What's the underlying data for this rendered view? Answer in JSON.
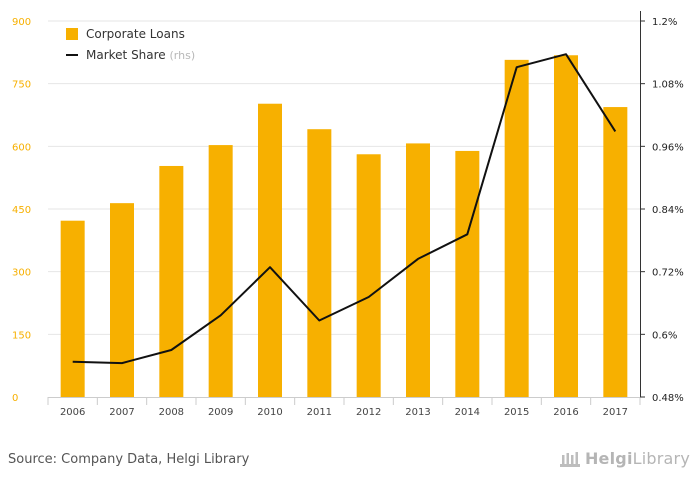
{
  "chart_data": {
    "type": "bar",
    "categories": [
      "2006",
      "2007",
      "2008",
      "2009",
      "2010",
      "2011",
      "2012",
      "2013",
      "2014",
      "2015",
      "2016",
      "2017"
    ],
    "series": [
      {
        "name": "Corporate Loans",
        "type": "bar",
        "axis": "left",
        "color": "#f7b000",
        "values": [
          422,
          464,
          553,
          603,
          702,
          641,
          581,
          607,
          589,
          807,
          818,
          694
        ]
      },
      {
        "name": "Market Share",
        "legend_suffix": "(rhs)",
        "type": "line",
        "axis": "right",
        "color": "#111111",
        "values": [
          0.5475,
          0.545,
          0.57,
          0.6365,
          0.7285,
          0.6265,
          0.6715,
          0.7445,
          0.7915,
          1.1115,
          1.1365,
          0.9885
        ]
      }
    ],
    "y_left": {
      "min": 0,
      "max": 900,
      "ticks": [
        0,
        150,
        300,
        450,
        600,
        750,
        900
      ],
      "tick_labels": [
        "0",
        "150",
        "300",
        "450",
        "600",
        "750",
        "900"
      ],
      "label_color": "#f7b000"
    },
    "y_right": {
      "min": 0.48,
      "max": 1.2,
      "ticks": [
        0.48,
        0.6,
        0.72,
        0.84,
        0.96,
        1.08,
        1.2
      ],
      "tick_labels": [
        "0.48%",
        "0.6%",
        "0.72%",
        "0.84%",
        "0.96%",
        "1.08%",
        "1.2%"
      ],
      "label_color": "#222222"
    },
    "grid": "horizontal",
    "legend_position": "top-left"
  },
  "footer": {
    "source": "Source: Company Data, Helgi Library",
    "brand_bold": "Helgi",
    "brand_rest": "Library"
  }
}
